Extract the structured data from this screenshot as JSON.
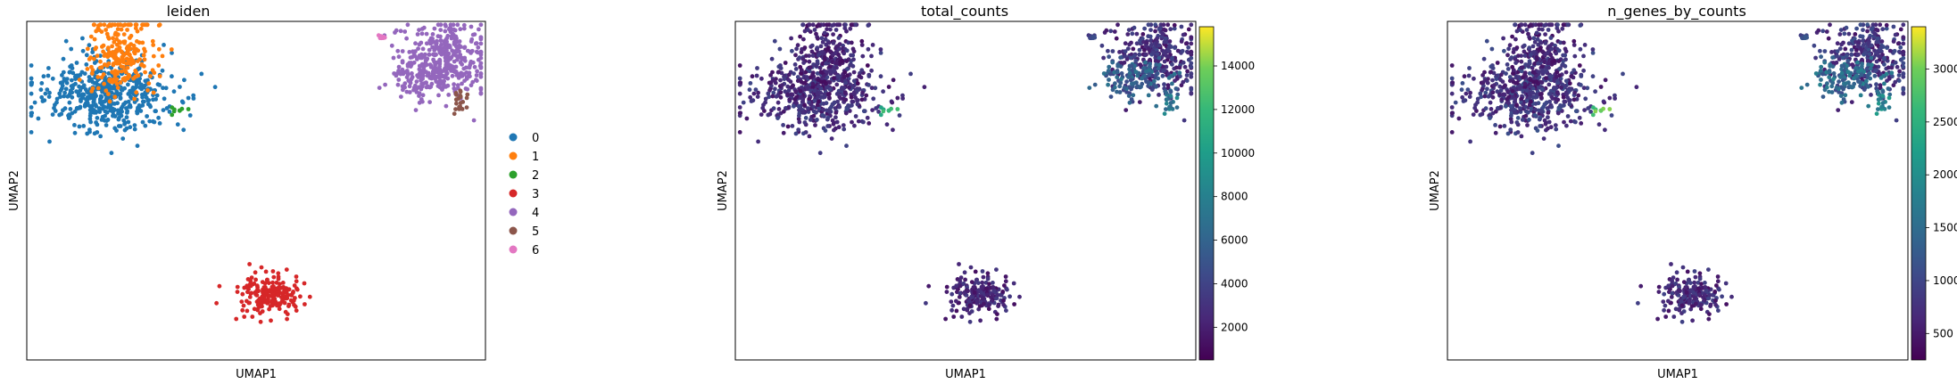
{
  "chart_data": [
    {
      "type": "scatter",
      "title": "leiden",
      "xlabel": "UMAP1",
      "ylabel": "UMAP2",
      "color_by": "categorical",
      "legend_placement": "right",
      "grid": false,
      "axis_ticks": false,
      "legend": [
        {
          "label": "0",
          "color": "#1f77b4"
        },
        {
          "label": "1",
          "color": "#ff7f0e"
        },
        {
          "label": "2",
          "color": "#2ca02c"
        },
        {
          "label": "3",
          "color": "#d62728"
        },
        {
          "label": "4",
          "color": "#9467bd"
        },
        {
          "label": "5",
          "color": "#8c564b"
        },
        {
          "label": "6",
          "color": "#e377c2"
        }
      ]
    },
    {
      "type": "scatter",
      "title": "total_counts",
      "xlabel": "UMAP1",
      "ylabel": "UMAP2",
      "color_by": "continuous",
      "colormap": "viridis",
      "grid": false,
      "axis_ticks": false,
      "colorbar": {
        "range": [
          500,
          15800
        ],
        "ticks": [
          "2000",
          "4000",
          "6000",
          "8000",
          "10000",
          "12000",
          "14000"
        ]
      }
    },
    {
      "type": "scatter",
      "title": "n_genes_by_counts",
      "xlabel": "UMAP1",
      "ylabel": "UMAP2",
      "color_by": "continuous",
      "colormap": "viridis",
      "grid": false,
      "axis_ticks": false,
      "colorbar": {
        "range": [
          250,
          3400
        ],
        "ticks": [
          "500",
          "1000",
          "1500",
          "2000",
          "2500",
          "3000"
        ]
      }
    }
  ]
}
